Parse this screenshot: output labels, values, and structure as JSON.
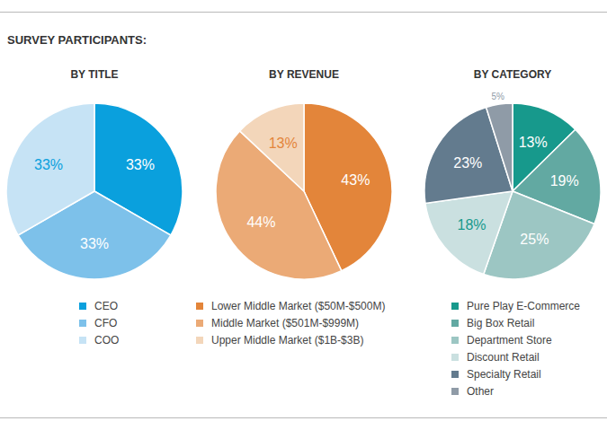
{
  "title": "SURVEY PARTICIPANTS:",
  "chart_data": [
    {
      "type": "pie",
      "title": "BY TITLE",
      "categories": [
        "CEO",
        "CFO",
        "COO"
      ],
      "values": [
        33,
        33,
        33
      ],
      "value_labels": [
        "33%",
        "33%",
        "33%"
      ],
      "colors": [
        "#0aa0dd",
        "#7dc1ea",
        "#c6e3f5"
      ],
      "data_labels": true,
      "legend": "bottom"
    },
    {
      "type": "pie",
      "title": "BY REVENUE",
      "categories": [
        "Lower Middle Market ($50M-$500M)",
        "Middle Market ($501M-$999M)",
        "Upper Middle Market ($1B-$3B)"
      ],
      "values": [
        43,
        44,
        13
      ],
      "value_labels": [
        "43%",
        "44%",
        "13%"
      ],
      "colors": [
        "#e3853a",
        "#ebaa76",
        "#f3d6ba"
      ],
      "data_labels": true,
      "legend": "bottom"
    },
    {
      "type": "pie",
      "title": "BY CATEGORY",
      "categories": [
        "Pure Play E-Commerce",
        "Big Box Retail",
        "Department Store",
        "Discount Retail",
        "Specialty Retail",
        "Other"
      ],
      "values": [
        13,
        19,
        25,
        18,
        23,
        5
      ],
      "value_labels": [
        "13%",
        "19%",
        "25%",
        "18%",
        "23%",
        "5%"
      ],
      "colors": [
        "#17998c",
        "#62a9a2",
        "#9cc6c3",
        "#cae0e0",
        "#637b8e",
        "#8f9ba7"
      ],
      "data_labels": true,
      "legend": "bottom"
    }
  ]
}
